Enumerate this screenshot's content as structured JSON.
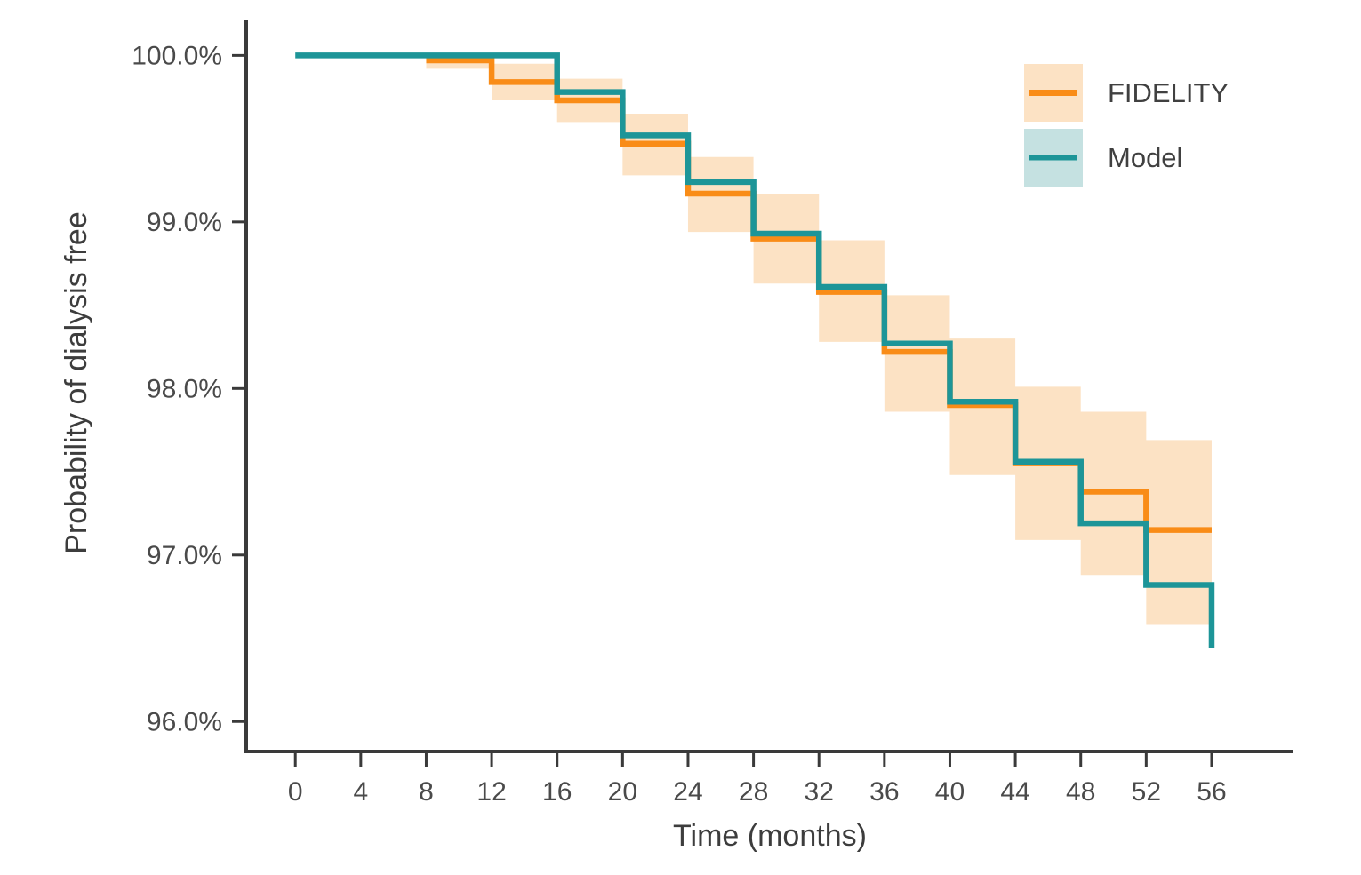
{
  "figure": {
    "x_axis_title": "Time (months)",
    "y_axis_title": "Probability of dialysis free"
  },
  "legend": {
    "items": [
      {
        "label": "FIDELITY",
        "line_color": "#F98C17",
        "fill_color": "#FCE2C4"
      },
      {
        "label": "Model",
        "line_color": "#1D9598",
        "fill_color": "#C5E1E1"
      }
    ]
  },
  "colors": {
    "axis": "#3a3a3a",
    "tick_text": "#4a4a4a",
    "ci_band": "#FCE2C4",
    "fidelity_line": "#F98C17",
    "model_line": "#1D9598"
  },
  "chart_data": {
    "type": "line",
    "subtype": "kaplan-meier-step",
    "title": "",
    "xlabel": "Time (months)",
    "ylabel": "Probability of dialysis free",
    "grid": false,
    "legend_position": "top-right",
    "xlim": [
      -3,
      61
    ],
    "ylim": [
      95.82,
      100.21
    ],
    "x_ticks": [
      0,
      4,
      8,
      12,
      16,
      20,
      24,
      28,
      32,
      36,
      40,
      44,
      48,
      52,
      56
    ],
    "x_tick_labels": [
      "0",
      "4",
      "8",
      "12",
      "16",
      "20",
      "24",
      "28",
      "32",
      "36",
      "40",
      "44",
      "48",
      "52",
      "56"
    ],
    "y_ticks": [
      100.0,
      99.0,
      98.0,
      97.0,
      96.0
    ],
    "y_tick_labels": [
      "100.0%",
      "99.0%",
      "98.0%",
      "97.0%",
      "96.0%"
    ],
    "series": [
      {
        "name": "FIDELITY",
        "color": "#F98C17",
        "step_points": [
          [
            8,
            99.97
          ],
          [
            12,
            99.84
          ],
          [
            16,
            99.73
          ],
          [
            20,
            99.47
          ],
          [
            24,
            99.17
          ],
          [
            28,
            98.9
          ],
          [
            32,
            98.58
          ],
          [
            36,
            98.22
          ],
          [
            40,
            97.9
          ],
          [
            44,
            97.55
          ],
          [
            48,
            97.38
          ],
          [
            52,
            97.15
          ],
          [
            56,
            97.15
          ]
        ]
      },
      {
        "name": "Model",
        "color": "#1D9598",
        "step_points": [
          [
            0,
            100.0
          ],
          [
            16,
            99.78
          ],
          [
            20,
            99.52
          ],
          [
            24,
            99.24
          ],
          [
            28,
            98.93
          ],
          [
            32,
            98.61
          ],
          [
            36,
            98.27
          ],
          [
            40,
            97.92
          ],
          [
            44,
            97.56
          ],
          [
            48,
            97.19
          ],
          [
            52,
            96.82
          ],
          [
            56,
            96.44
          ]
        ]
      }
    ],
    "ci_band": {
      "series": "FIDELITY",
      "color": "#FCE2C4",
      "intervals": [
        [
          8,
          12,
          99.92,
          100.0
        ],
        [
          12,
          16,
          99.73,
          99.95
        ],
        [
          16,
          20,
          99.6,
          99.86
        ],
        [
          20,
          24,
          99.28,
          99.65
        ],
        [
          24,
          28,
          98.94,
          99.39
        ],
        [
          28,
          32,
          98.63,
          99.17
        ],
        [
          32,
          36,
          98.28,
          98.89
        ],
        [
          36,
          40,
          97.86,
          98.56
        ],
        [
          40,
          44,
          97.48,
          98.3
        ],
        [
          44,
          48,
          97.09,
          98.01
        ],
        [
          48,
          52,
          96.88,
          97.86
        ],
        [
          52,
          56,
          96.58,
          97.69
        ]
      ]
    }
  }
}
